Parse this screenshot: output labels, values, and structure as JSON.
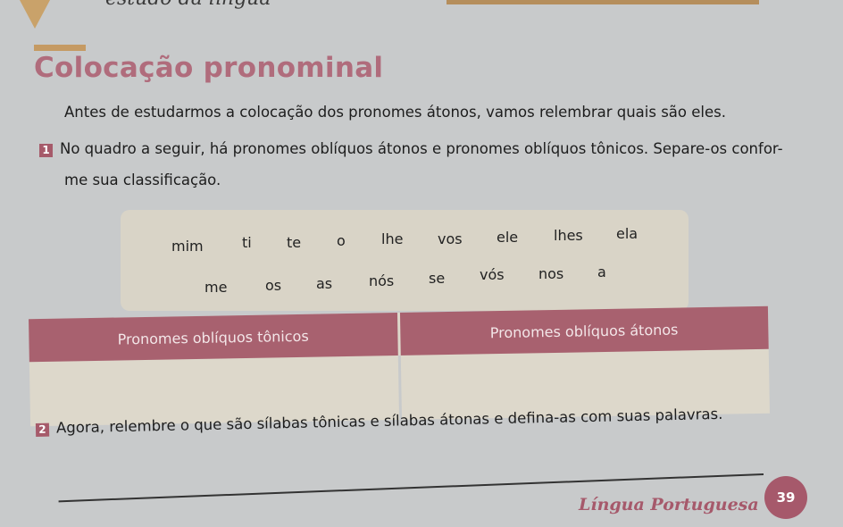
{
  "header": {
    "section": "estudo da língua"
  },
  "title": "Colocação pronominal",
  "intro": "Antes de estudarmos a colocação dos pronomes átonos, vamos relembrar quais são eles.",
  "exercise1": {
    "number": "1",
    "line1": "No quadro a seguir, há pronomes oblíquos átonos e pronomes oblíquos tônicos. Separe-os confor-",
    "line2": "me sua classificação."
  },
  "words": {
    "row1": [
      "mim",
      "ti",
      "te",
      "o",
      "lhe",
      "vos",
      "ele",
      "lhes",
      "ela"
    ],
    "row2": [
      "me",
      "os",
      "as",
      "nós",
      "se",
      "vós",
      "nos",
      "a"
    ]
  },
  "table": {
    "headers": [
      "Pronomes oblíquos tônicos",
      "Pronomes oblíquos átonos"
    ]
  },
  "exercise2": {
    "number": "2",
    "text": "Agora, relembre o que são sílabas tônicas e sílabas átonas e defina-as com suas palavras."
  },
  "footer": {
    "subject": "Língua Portuguesa",
    "page": "39"
  },
  "colors": {
    "accent": "#a6596b",
    "title": "#b06c7c",
    "gold": "#c59a63",
    "box": "#d9d4c7"
  }
}
